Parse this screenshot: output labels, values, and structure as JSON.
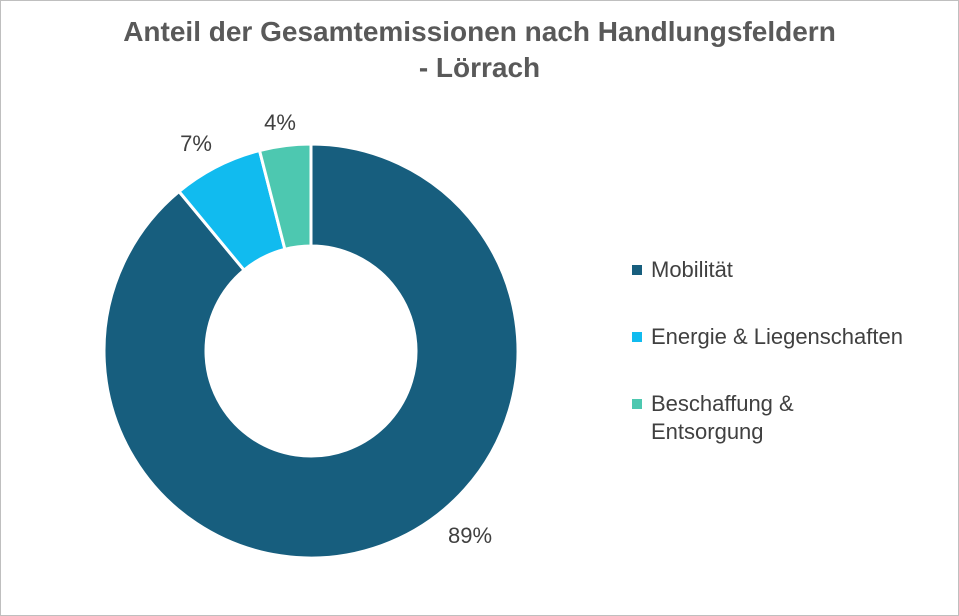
{
  "chart_data": {
    "type": "pie",
    "variant": "donut",
    "title": "Anteil der Gesamtemissionen nach Handlungsfeldern - Lörrach",
    "title_lines": [
      "Anteil der Gesamtemissionen nach Handlungsfeldern",
      "- Lörrach"
    ],
    "categories": [
      "Mobilität",
      "Energie & Liegenschaften",
      "Beschaffung & Entsorgung"
    ],
    "values": [
      89,
      7,
      4
    ],
    "labels": [
      "89%",
      "7%",
      "4%"
    ],
    "unit": "%",
    "colors": [
      "#175e7e",
      "#11bbef",
      "#4dc8b0"
    ],
    "legend_position": "right"
  }
}
